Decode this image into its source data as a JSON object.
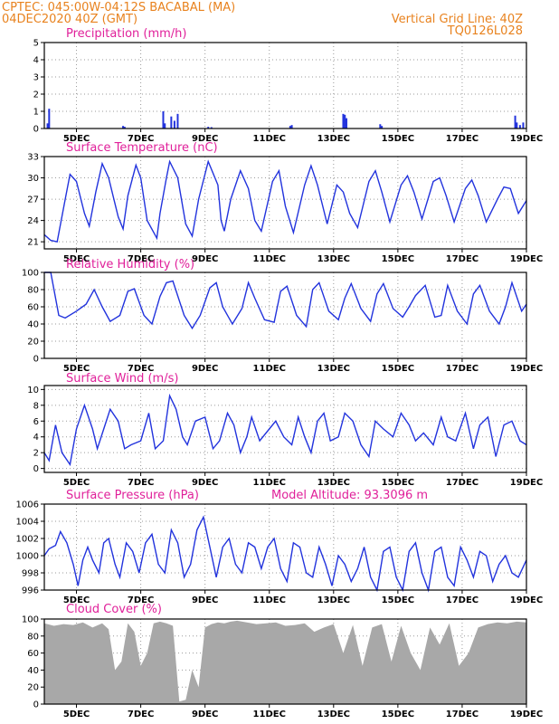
{
  "header": {
    "line1": "CPTEC:   045:00W-04:12S   BACABAL (MA)",
    "line2": "04DEC2020 40Z (GMT)",
    "grid_note": "Vertical Grid Line: 40Z",
    "code": "TQ0126L028"
  },
  "colors": {
    "header": "#e8821e",
    "title": "#e0209a",
    "series": "#2233dd",
    "bars": "#2233dd",
    "cloud": "#a8a8a8",
    "grid": "#9a9a9a"
  },
  "x_ticks": [
    "5DEC",
    "7DEC",
    "9DEC",
    "11DEC",
    "13DEC",
    "15DEC",
    "17DEC",
    "19DEC"
  ],
  "chart_data": [
    {
      "id": "precip",
      "type": "bar",
      "title": "Precipitation (mm/h)",
      "ylim": [
        0,
        5
      ],
      "yticks": [
        "0",
        "1",
        "2",
        "3",
        "4",
        "5"
      ],
      "x_unit": "days since 04DEC2020 16Z",
      "x": [
        0.1,
        0.15,
        2.45,
        2.5,
        3.7,
        3.75,
        3.95,
        4.05,
        4.15,
        5.1,
        5.2,
        7.65,
        7.7,
        9.3,
        9.35,
        9.4,
        10.45,
        10.5,
        14.65,
        14.7,
        14.8,
        14.9
      ],
      "values": [
        0.3,
        1.15,
        0.15,
        0.1,
        1.0,
        0.3,
        0.7,
        0.45,
        0.85,
        0.1,
        0.08,
        0.15,
        0.2,
        0.85,
        0.8,
        0.6,
        0.25,
        0.15,
        0.75,
        0.35,
        0.2,
        0.35
      ],
      "grid": true
    },
    {
      "id": "temp",
      "type": "line",
      "title": "Surface Temperature (nC)",
      "ylim": [
        20,
        33
      ],
      "yticks": [
        "21",
        "24",
        "27",
        "30",
        "33"
      ],
      "series": [
        {
          "x": [
            0,
            0.2,
            0.4,
            0.65,
            0.8,
            1.0,
            1.25,
            1.4,
            1.6,
            1.8,
            2.0,
            2.3,
            2.45,
            2.6,
            2.85,
            3.0,
            3.2,
            3.5,
            3.6,
            3.8,
            3.9,
            4.15,
            4.4,
            4.6,
            4.8,
            5.1,
            5.4,
            5.5,
            5.6,
            5.8,
            6.1,
            6.35,
            6.55,
            6.75,
            7.1,
            7.3,
            7.5,
            7.75,
            8.1,
            8.3,
            8.5,
            8.8,
            9.1,
            9.3,
            9.5,
            9.75,
            10.1,
            10.3,
            10.5,
            10.75,
            11.1,
            11.3,
            11.5,
            11.75,
            12.1,
            12.3,
            12.5,
            12.75,
            13.1,
            13.3,
            13.5,
            13.75,
            14.1,
            14.3,
            14.5,
            14.75,
            15.0
          ],
          "y": [
            22.0,
            21.2,
            21.0,
            27.0,
            30.5,
            29.5,
            25.0,
            23.2,
            28.0,
            32.0,
            30.0,
            24.5,
            22.8,
            27.5,
            31.8,
            30.0,
            24.0,
            21.5,
            25.0,
            30.0,
            32.3,
            30.0,
            23.5,
            21.8,
            27.0,
            32.3,
            29.0,
            24.0,
            22.5,
            27.0,
            31.0,
            28.5,
            24.0,
            22.5,
            29.5,
            31.0,
            26.0,
            22.3,
            29.0,
            31.7,
            29.0,
            23.5,
            29.0,
            28.0,
            25.0,
            23.0,
            29.5,
            31.0,
            28.0,
            23.8,
            29.0,
            30.3,
            28.0,
            24.2,
            29.5,
            30.0,
            27.5,
            23.8,
            28.5,
            29.7,
            27.5,
            23.8,
            27.0,
            28.7,
            28.5,
            25.0,
            26.8
          ]
        }
      ],
      "grid": true
    },
    {
      "id": "rh",
      "type": "line",
      "title": "Relative Humidity (%)",
      "ylim": [
        0,
        100
      ],
      "yticks": [
        "0",
        "20",
        "40",
        "60",
        "80",
        "100"
      ],
      "series": [
        {
          "x": [
            0,
            0.2,
            0.45,
            0.65,
            1.0,
            1.3,
            1.55,
            1.8,
            2.05,
            2.35,
            2.6,
            2.8,
            3.1,
            3.35,
            3.6,
            3.8,
            4.0,
            4.35,
            4.6,
            4.85,
            5.15,
            5.35,
            5.55,
            5.85,
            6.15,
            6.35,
            6.55,
            6.85,
            7.15,
            7.35,
            7.55,
            7.85,
            8.15,
            8.35,
            8.55,
            8.85,
            9.15,
            9.35,
            9.55,
            9.85,
            10.15,
            10.35,
            10.55,
            10.85,
            11.15,
            11.35,
            11.55,
            11.85,
            12.15,
            12.35,
            12.55,
            12.85,
            13.15,
            13.35,
            13.55,
            13.85,
            14.15,
            14.35,
            14.55,
            14.85,
            15.0
          ],
          "y": [
            100,
            100,
            50,
            47,
            55,
            63,
            80,
            60,
            43,
            50,
            78,
            81,
            50,
            40,
            72,
            88,
            90,
            50,
            35,
            50,
            82,
            88,
            60,
            40,
            58,
            88,
            70,
            45,
            42,
            78,
            84,
            50,
            37,
            80,
            88,
            55,
            45,
            70,
            87,
            58,
            43,
            75,
            87,
            58,
            48,
            60,
            73,
            85,
            48,
            50,
            85,
            55,
            40,
            75,
            85,
            55,
            40,
            60,
            88,
            55,
            63
          ]
        }
      ],
      "grid": true
    },
    {
      "id": "wind",
      "type": "line",
      "title": "Surface Wind (m/s)",
      "ylim": [
        -0.5,
        10.5
      ],
      "yticks": [
        "0",
        "2",
        "4",
        "6",
        "8",
        "10"
      ],
      "series": [
        {
          "x": [
            0,
            0.15,
            0.35,
            0.55,
            0.8,
            1.0,
            1.25,
            1.5,
            1.65,
            1.85,
            2.05,
            2.3,
            2.5,
            2.7,
            3.0,
            3.25,
            3.45,
            3.7,
            3.9,
            4.1,
            4.3,
            4.45,
            4.7,
            5.0,
            5.25,
            5.45,
            5.7,
            5.9,
            6.1,
            6.3,
            6.45,
            6.7,
            7.0,
            7.2,
            7.45,
            7.7,
            7.9,
            8.1,
            8.3,
            8.5,
            8.7,
            8.9,
            9.15,
            9.35,
            9.6,
            9.85,
            10.1,
            10.3,
            10.55,
            10.85,
            11.1,
            11.35,
            11.55,
            11.8,
            12.1,
            12.35,
            12.55,
            12.8,
            13.1,
            13.35,
            13.55,
            13.8,
            14.05,
            14.3,
            14.55,
            14.8,
            15.0
          ],
          "y": [
            2.0,
            1.0,
            5.5,
            2.0,
            0.5,
            5.0,
            8.0,
            5.0,
            2.5,
            5.0,
            7.5,
            6.0,
            2.5,
            3.0,
            3.5,
            7.0,
            2.5,
            3.5,
            9.2,
            7.5,
            4.0,
            3.0,
            6.0,
            6.5,
            2.5,
            3.5,
            7.0,
            5.5,
            2.0,
            4.0,
            6.5,
            3.5,
            5.0,
            6.0,
            4.0,
            3.0,
            6.5,
            4.0,
            2.0,
            6.0,
            7.0,
            3.5,
            4.0,
            7.0,
            6.0,
            3.0,
            1.5,
            6.0,
            5.0,
            4.0,
            7.0,
            5.5,
            3.5,
            4.5,
            3.0,
            6.5,
            4.0,
            3.5,
            7.0,
            2.5,
            5.5,
            6.5,
            1.5,
            5.5,
            6.0,
            3.5,
            3.0
          ]
        }
      ],
      "grid": true
    },
    {
      "id": "pres",
      "type": "line",
      "title": "Surface Pressure (hPa)",
      "subtitle": "Model Altitude: 93.3096 m",
      "ylim": [
        996,
        1006
      ],
      "yticks": [
        "996",
        "998",
        "1000",
        "1002",
        "1004",
        "1006"
      ],
      "series": [
        {
          "x": [
            0,
            0.15,
            0.35,
            0.5,
            0.7,
            0.9,
            1.05,
            1.2,
            1.35,
            1.5,
            1.7,
            1.85,
            2.0,
            2.2,
            2.35,
            2.55,
            2.75,
            2.95,
            3.15,
            3.35,
            3.55,
            3.75,
            3.95,
            4.15,
            4.35,
            4.55,
            4.75,
            4.95,
            5.15,
            5.35,
            5.55,
            5.75,
            5.95,
            6.15,
            6.35,
            6.55,
            6.75,
            6.95,
            7.15,
            7.35,
            7.55,
            7.75,
            7.95,
            8.15,
            8.35,
            8.55,
            8.75,
            8.95,
            9.15,
            9.35,
            9.55,
            9.75,
            9.95,
            10.15,
            10.35,
            10.55,
            10.75,
            10.95,
            11.15,
            11.35,
            11.55,
            11.75,
            11.95,
            12.15,
            12.35,
            12.55,
            12.75,
            12.95,
            13.15,
            13.35,
            13.55,
            13.75,
            13.95,
            14.15,
            14.35,
            14.55,
            14.75,
            15.0
          ],
          "y": [
            1000.0,
            1000.8,
            1001.2,
            1002.8,
            1001.5,
            999.0,
            996.5,
            999.5,
            1001.0,
            999.5,
            998.0,
            1001.5,
            1002.0,
            999.0,
            997.5,
            1001.5,
            1000.5,
            998.0,
            1001.5,
            1002.5,
            999.0,
            998.0,
            1003.0,
            1001.5,
            997.5,
            999.0,
            1003.0,
            1004.5,
            1001.0,
            997.5,
            1001.0,
            1002.0,
            999.0,
            998.0,
            1001.5,
            1001.0,
            998.5,
            1001.0,
            1002.0,
            998.5,
            997.0,
            1001.5,
            1001.0,
            998.0,
            997.5,
            1001.0,
            999.0,
            996.5,
            1000.0,
            999.0,
            997.0,
            998.5,
            1001.0,
            997.5,
            996.0,
            1000.5,
            1001.0,
            997.5,
            996.0,
            1000.5,
            1001.5,
            998.0,
            996.0,
            1000.5,
            1001.0,
            997.5,
            996.5,
            1001.0,
            999.5,
            997.5,
            1000.5,
            1000.0,
            997.0,
            999.0,
            1000.0,
            998.0,
            997.5,
            999.5
          ]
        }
      ],
      "grid": true
    },
    {
      "id": "cloud",
      "type": "area",
      "title": "Cloud Cover (%)",
      "ylim": [
        0,
        100
      ],
      "yticks": [
        "0",
        "20",
        "40",
        "60",
        "80",
        "100"
      ],
      "series": [
        {
          "x": [
            0,
            0.3,
            0.6,
            0.9,
            1.2,
            1.5,
            1.8,
            2.0,
            2.2,
            2.4,
            2.6,
            2.8,
            3.0,
            3.2,
            3.4,
            3.6,
            3.8,
            4.0,
            4.2,
            4.4,
            4.6,
            4.8,
            5.0,
            5.2,
            5.4,
            5.6,
            5.8,
            6.0,
            6.3,
            6.6,
            6.9,
            7.2,
            7.5,
            7.8,
            8.1,
            8.4,
            8.7,
            9.0,
            9.3,
            9.6,
            9.9,
            10.2,
            10.5,
            10.8,
            11.1,
            11.4,
            11.7,
            12.0,
            12.3,
            12.6,
            12.9,
            13.2,
            13.5,
            13.8,
            14.1,
            14.4,
            14.7,
            15.0
          ],
          "y": [
            95,
            92,
            94,
            93,
            96,
            90,
            95,
            88,
            40,
            50,
            95,
            85,
            45,
            60,
            95,
            97,
            95,
            92,
            3,
            5,
            40,
            20,
            90,
            94,
            96,
            95,
            97,
            98,
            96,
            94,
            95,
            96,
            92,
            93,
            95,
            85,
            90,
            94,
            60,
            93,
            45,
            90,
            94,
            50,
            92,
            60,
            40,
            90,
            70,
            95,
            45,
            60,
            90,
            94,
            96,
            95,
            97,
            96
          ]
        }
      ],
      "grid": true
    }
  ]
}
